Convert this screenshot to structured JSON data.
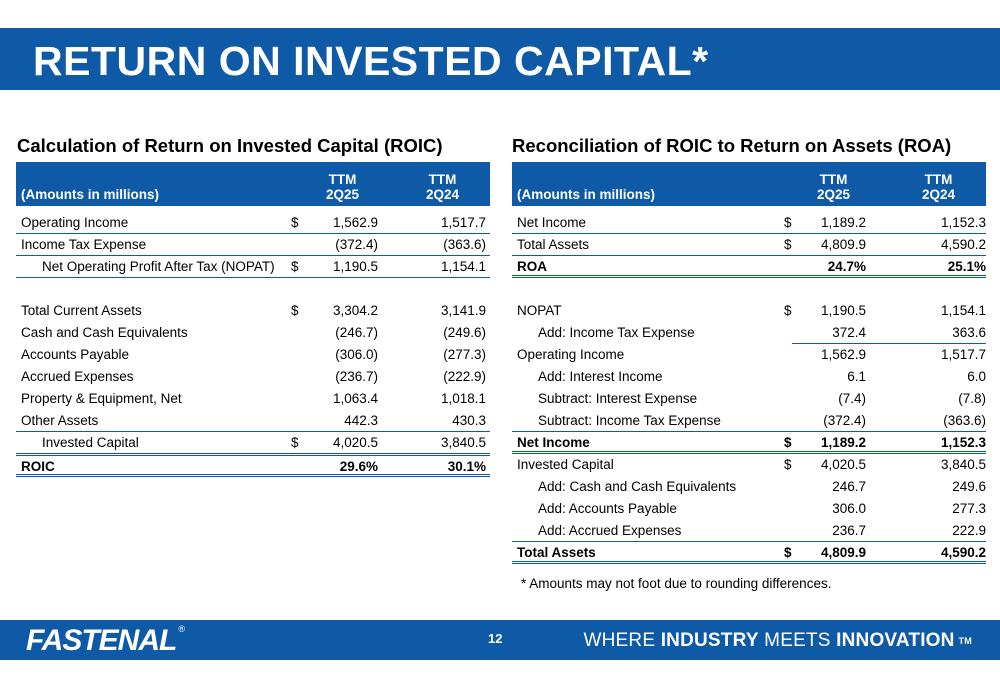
{
  "title": "RETURN ON INVESTED CAPITAL*",
  "left": {
    "heading": "Calculation of Return on Invested Capital (ROIC)",
    "amounts_label": "(Amounts in millions)",
    "col1": [
      "TTM",
      "2Q25"
    ],
    "col2": [
      "TTM",
      "2Q24"
    ],
    "rows": [
      {
        "label": "Operating Income",
        "dollar": "$",
        "v1": "1,562.9",
        "v2": "1,517.7"
      },
      {
        "label": "Income Tax Expense",
        "dollar": "",
        "v1": "(372.4)",
        "v2": "(363.6)"
      },
      {
        "label": "Net Operating Profit After Tax (NOPAT)",
        "dollar": "$",
        "v1": "1,190.5",
        "v2": "1,154.1"
      },
      {
        "label": "Total Current Assets",
        "dollar": "$",
        "v1": "3,304.2",
        "v2": "3,141.9"
      },
      {
        "label": "Cash and Cash Equivalents",
        "dollar": "",
        "v1": "(246.7)",
        "v2": "(249.6)"
      },
      {
        "label": "Accounts Payable",
        "dollar": "",
        "v1": "(306.0)",
        "v2": "(277.3)"
      },
      {
        "label": "Accrued Expenses",
        "dollar": "",
        "v1": "(236.7)",
        "v2": "(222.9)"
      },
      {
        "label": "Property & Equipment, Net",
        "dollar": "",
        "v1": "1,063.4",
        "v2": "1,018.1"
      },
      {
        "label": "Other Assets",
        "dollar": "",
        "v1": "442.3",
        "v2": "430.3"
      },
      {
        "label": "Invested Capital",
        "dollar": "$",
        "v1": "4,020.5",
        "v2": "3,840.5"
      },
      {
        "label": "ROIC",
        "dollar": "",
        "v1": "29.6%",
        "v2": "30.1%"
      }
    ]
  },
  "right": {
    "heading": "Reconciliation of ROIC to Return on Assets (ROA)",
    "amounts_label": "(Amounts in millions)",
    "col1": [
      "TTM",
      "2Q25"
    ],
    "col2": [
      "TTM",
      "2Q24"
    ],
    "rows": [
      {
        "label": "Net Income",
        "dollar": "$",
        "v1": "1,189.2",
        "v2": "1,152.3"
      },
      {
        "label": "Total Assets",
        "dollar": "$",
        "v1": "4,809.9",
        "v2": "4,590.2"
      },
      {
        "label": "ROA",
        "dollar": "",
        "v1": "24.7%",
        "v2": "25.1%"
      },
      {
        "label": "NOPAT",
        "dollar": "$",
        "v1": "1,190.5",
        "v2": "1,154.1"
      },
      {
        "label": "Add: Income Tax Expense",
        "dollar": "",
        "v1": "372.4",
        "v2": "363.6"
      },
      {
        "label": "Operating Income",
        "dollar": "",
        "v1": "1,562.9",
        "v2": "1,517.7"
      },
      {
        "label": "Add: Interest Income",
        "dollar": "",
        "v1": "6.1",
        "v2": "6.0"
      },
      {
        "label": "Subtract: Interest Expense",
        "dollar": "",
        "v1": "(7.4)",
        "v2": "(7.8)"
      },
      {
        "label": "Subtract: Income Tax Expense",
        "dollar": "",
        "v1": "(372.4)",
        "v2": "(363.6)"
      },
      {
        "label": "Net Income",
        "dollar": "$",
        "v1": "1,189.2",
        "v2": "1,152.3"
      },
      {
        "label": "Invested Capital",
        "dollar": "$",
        "v1": "4,020.5",
        "v2": "3,840.5"
      },
      {
        "label": "Add: Cash and Cash Equivalents",
        "dollar": "",
        "v1": "246.7",
        "v2": "249.6"
      },
      {
        "label": "Add: Accounts Payable",
        "dollar": "",
        "v1": "306.0",
        "v2": "277.3"
      },
      {
        "label": "Add: Accrued Expenses",
        "dollar": "",
        "v1": "236.7",
        "v2": "222.9"
      },
      {
        "label": "Total Assets",
        "dollar": "$",
        "v1": "4,809.9",
        "v2": "4,590.2"
      }
    ]
  },
  "footnote": "* Amounts may not foot due to rounding differences.",
  "footer": {
    "logo": "FASTENAL",
    "logo_reg": "®",
    "page_number": "12",
    "tagline_1": "WHERE ",
    "tagline_2": "INDUSTRY",
    "tagline_3": " MEETS ",
    "tagline_4": "INNOVATION",
    "tagline_tm": "TM"
  },
  "colors": {
    "brand_blue": "#0e5aa7"
  }
}
